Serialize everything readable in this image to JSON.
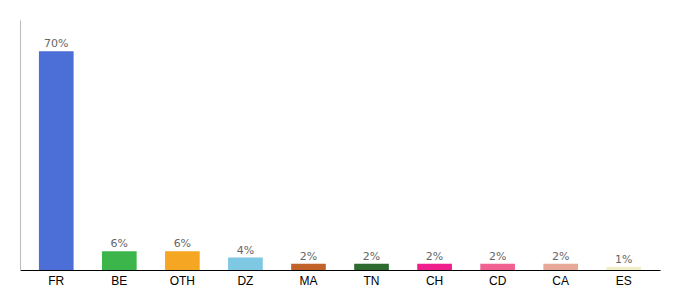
{
  "chart_data": {
    "type": "bar",
    "categories": [
      "FR",
      "BE",
      "OTH",
      "DZ",
      "MA",
      "TN",
      "CH",
      "CD",
      "CA",
      "ES"
    ],
    "values": [
      70,
      6,
      6,
      4,
      2,
      2,
      2,
      2,
      2,
      1
    ],
    "value_labels": [
      "70%",
      "6%",
      "6%",
      "4%",
      "2%",
      "2%",
      "2%",
      "2%",
      "2%",
      "1%"
    ],
    "colors": [
      "#4b6fd6",
      "#3cb54a",
      "#f5a623",
      "#7ec8e3",
      "#c0622a",
      "#2e6b2e",
      "#f01e8c",
      "#f06090",
      "#e8a898",
      "#f0edc8"
    ],
    "ylim": [
      0,
      80
    ],
    "data_labels": true,
    "tick_labels": "x",
    "grid": false
  }
}
